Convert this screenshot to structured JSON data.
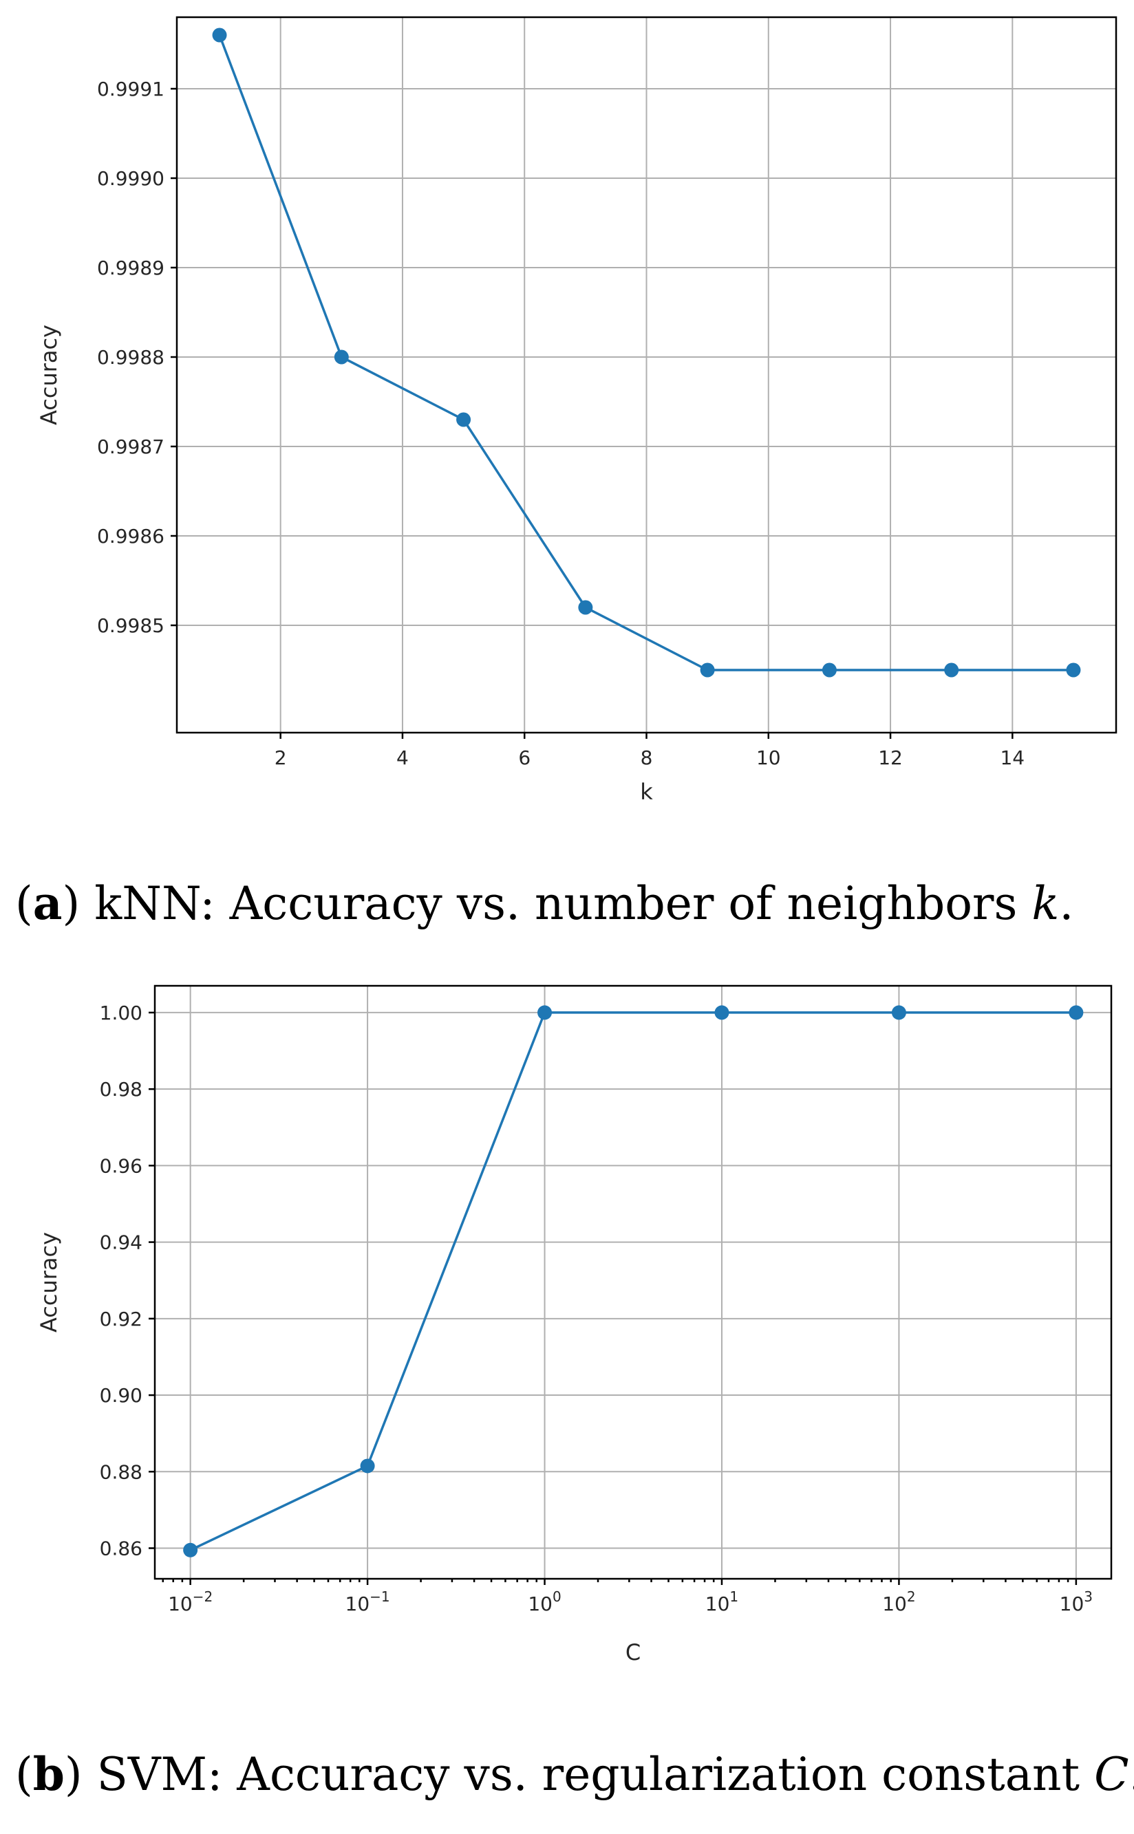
{
  "chart_data": [
    {
      "type": "line",
      "xlabel": "k",
      "ylabel": "Accuracy",
      "xscale": "linear",
      "xlim": [
        0.3,
        15.7
      ],
      "ylim": [
        0.99838,
        0.99918
      ],
      "xticks": [
        2,
        4,
        6,
        8,
        10,
        12,
        14
      ],
      "xtick_labels": [
        "2",
        "4",
        "6",
        "8",
        "10",
        "12",
        "14"
      ],
      "yticks": [
        0.9985,
        0.9986,
        0.9987,
        0.9988,
        0.9989,
        0.999,
        0.9991
      ],
      "ytick_labels": [
        "0.9985",
        "0.9986",
        "0.9987",
        "0.9988",
        "0.9989",
        "0.9990",
        "0.9991"
      ],
      "grid": true,
      "color": "#1f77b4",
      "marker": "circle",
      "x": [
        1,
        3,
        5,
        7,
        9,
        11,
        13,
        15
      ],
      "y": [
        0.99916,
        0.9988,
        0.99873,
        0.99852,
        0.99845,
        0.99845,
        0.99845,
        0.99845
      ],
      "caption": {
        "open": "(",
        "letter": "a",
        "text": ") kNN: Accuracy vs. number of neighbors ",
        "var": "k",
        "end": "."
      }
    },
    {
      "type": "line",
      "xlabel": "C",
      "ylabel": "Accuracy",
      "xscale": "log",
      "xlim": [
        0.0063,
        1580
      ],
      "ylim": [
        0.852,
        1.007
      ],
      "xticks": [
        0.01,
        0.1,
        1,
        10,
        100,
        1000
      ],
      "xtick_labels": [
        {
          "base": "10",
          "exp": "−2"
        },
        {
          "base": "10",
          "exp": "−1"
        },
        {
          "base": "10",
          "exp": "0"
        },
        {
          "base": "10",
          "exp": "1"
        },
        {
          "base": "10",
          "exp": "2"
        },
        {
          "base": "10",
          "exp": "3"
        }
      ],
      "yticks": [
        0.86,
        0.88,
        0.9,
        0.92,
        0.94,
        0.96,
        0.98,
        1.0
      ],
      "ytick_labels": [
        "0.86",
        "0.88",
        "0.90",
        "0.92",
        "0.94",
        "0.96",
        "0.98",
        "1.00"
      ],
      "grid": true,
      "color": "#1f77b4",
      "marker": "circle",
      "x": [
        0.01,
        0.1,
        1,
        10,
        100,
        1000
      ],
      "y": [
        0.8595,
        0.8815,
        1.0,
        1.0,
        1.0,
        1.0
      ],
      "caption": {
        "open": "(",
        "letter": "b",
        "text": ") SVM: Accuracy vs. regularization constant ",
        "var": "C",
        "end": "."
      }
    }
  ]
}
